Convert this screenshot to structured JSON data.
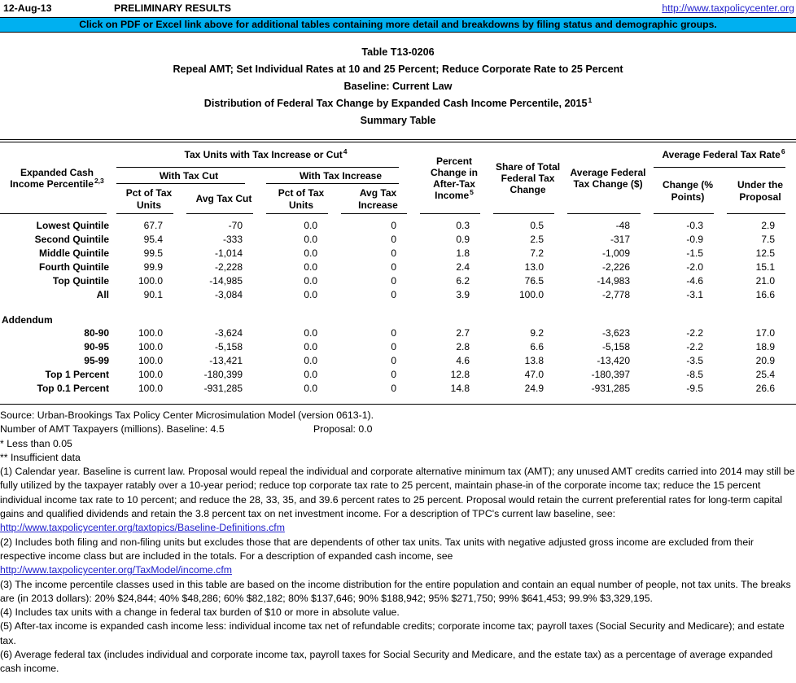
{
  "colors": {
    "banner_bg": "#00B0F0",
    "link": "#2222CC"
  },
  "page": {
    "date": "12-Aug-13",
    "preliminary": "PRELIMINARY RESULTS",
    "site_url": "http://www.taxpolicycenter.org",
    "banner": "Click on PDF or Excel link above for additional tables containing more detail and breakdowns by filing status and demographic groups."
  },
  "title": {
    "line1": "Table T13-0206",
    "line2": "Repeal AMT; Set Individual Rates at 10 and 25 Percent; Reduce Corporate Rate to 25 Percent",
    "line3": "Baseline: Current Law",
    "line4": "Distribution of Federal Tax Change by Expanded Cash Income Percentile, 2015",
    "line4_sup": "1",
    "line5": "Summary Table"
  },
  "table": {
    "col_group_label": {
      "label": "Expanded Cash Income Percentile",
      "sup": "2,3"
    },
    "group_tax_units": {
      "label": "Tax Units with Tax Increase or Cut",
      "sup": "4"
    },
    "group_with_cut": "With Tax Cut",
    "group_with_increase": "With Tax Increase",
    "col_pct_units_cut": "Pct of Tax Units",
    "col_avg_cut": "Avg Tax Cut",
    "col_pct_units_inc": "Pct of Tax Units",
    "col_avg_inc": "Avg Tax Increase",
    "col_pct_change_ati": {
      "label": "Percent Change in After-Tax Income",
      "sup": "5"
    },
    "col_share_total": "Share of Total Federal Tax Change",
    "col_avg_change": "Average Federal Tax Change ($)",
    "group_avg_rate": {
      "label": "Average Federal Tax Rate",
      "sup": "6"
    },
    "col_rate_change": "Change (% Points)",
    "col_rate_under": "Under the Proposal",
    "rows": [
      {
        "label": "Lowest Quintile",
        "values": [
          "67.7",
          "-70",
          "0.0",
          "0",
          "0.3",
          "0.5",
          "-48",
          "-0.3",
          "2.9"
        ]
      },
      {
        "label": "Second Quintile",
        "values": [
          "95.4",
          "-333",
          "0.0",
          "0",
          "0.9",
          "2.5",
          "-317",
          "-0.9",
          "7.5"
        ]
      },
      {
        "label": "Middle Quintile",
        "values": [
          "99.5",
          "-1,014",
          "0.0",
          "0",
          "1.8",
          "7.2",
          "-1,009",
          "-1.5",
          "12.5"
        ]
      },
      {
        "label": "Fourth Quintile",
        "values": [
          "99.9",
          "-2,228",
          "0.0",
          "0",
          "2.4",
          "13.0",
          "-2,226",
          "-2.0",
          "15.1"
        ]
      },
      {
        "label": "Top Quintile",
        "values": [
          "100.0",
          "-14,985",
          "0.0",
          "0",
          "6.2",
          "76.5",
          "-14,983",
          "-4.6",
          "21.0"
        ]
      },
      {
        "label": "All",
        "values": [
          "90.1",
          "-3,084",
          "0.0",
          "0",
          "3.9",
          "100.0",
          "-2,778",
          "-3.1",
          "16.6"
        ]
      }
    ],
    "addendum_label": "Addendum",
    "addendum_rows": [
      {
        "label": "80-90",
        "values": [
          "100.0",
          "-3,624",
          "0.0",
          "0",
          "2.7",
          "9.2",
          "-3,623",
          "-2.2",
          "17.0"
        ]
      },
      {
        "label": "90-95",
        "values": [
          "100.0",
          "-5,158",
          "0.0",
          "0",
          "2.8",
          "6.6",
          "-5,158",
          "-2.2",
          "18.9"
        ]
      },
      {
        "label": "95-99",
        "values": [
          "100.0",
          "-13,421",
          "0.0",
          "0",
          "4.6",
          "13.8",
          "-13,420",
          "-3.5",
          "20.9"
        ]
      },
      {
        "label": "Top 1 Percent",
        "values": [
          "100.0",
          "-180,399",
          "0.0",
          "0",
          "12.8",
          "47.0",
          "-180,397",
          "-8.5",
          "25.4"
        ]
      },
      {
        "label": "Top 0.1 Percent",
        "values": [
          "100.0",
          "-931,285",
          "0.0",
          "0",
          "14.8",
          "24.9",
          "-931,285",
          "-9.5",
          "26.6"
        ]
      }
    ]
  },
  "footer": {
    "source": "Source: Urban-Brookings Tax Policy Center Microsimulation Model (version 0613-1).",
    "amt_line_left": "Number of AMT Taxpayers (millions).  Baseline: 4.5",
    "amt_line_right": "Proposal: 0.0",
    "note_star": "* Less than 0.05",
    "note_2star": "** Insufficient data",
    "fn1": "(1) Calendar year. Baseline is current law. Proposal would repeal the individual and corporate alternative minimum tax (AMT); any unused AMT credits carried into 2014 may still be fully utilized by the taxpayer ratably over a 10-year period; reduce top corporate tax rate to 25 percent, maintain phase-in of the corporate income tax; reduce the 15 percent individual income tax rate to 10 percent; and reduce the 28, 33, 35, and 39.6 percent rates to 25 percent. Proposal would retain the current preferential rates for long-term capital gains and qualified dividends and retain the 3.8 percent tax on net investment income. For a description of TPC's current law baseline, see:",
    "fn1_link": "http://www.taxpolicycenter.org/taxtopics/Baseline-Definitions.cfm",
    "fn2": "(2) Includes both filing and non-filing units but excludes those that are dependents of other tax units. Tax units with negative adjusted gross income are excluded from their respective income class but are included in the totals. For a description of expanded cash income, see",
    "fn2_link": "http://www.taxpolicycenter.org/TaxModel/income.cfm",
    "fn3": "(3) The income percentile classes used in this table are based on the income distribution for the entire population and contain an equal number of people, not tax units. The breaks are (in 2013 dollars): 20% $24,844; 40% $48,286; 60% $82,182; 80% $137,646; 90% $188,942; 95% $271,750; 99% $641,453; 99.9% $3,329,195.",
    "fn4": "(4) Includes tax units with a change in federal tax burden of $10 or more in absolute value.",
    "fn5": "(5) After-tax income is expanded cash income less: individual income tax net of refundable credits; corporate income tax; payroll taxes (Social Security and Medicare); and estate tax.",
    "fn6": "(6) Average federal tax (includes individual and corporate income tax, payroll taxes for Social Security and Medicare, and the estate tax) as a percentage of average expanded cash income."
  }
}
